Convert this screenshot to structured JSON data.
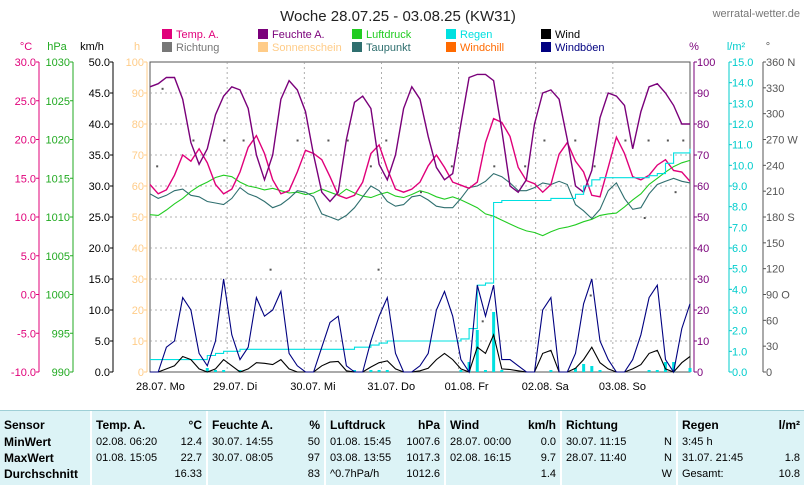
{
  "title": "Woche 28.07.25 - 03.08.25 (KW31)",
  "site": "werratal-wetter.de",
  "legend": [
    {
      "label": "Temp. A.",
      "color": "#e0007a"
    },
    {
      "label": "Feuchte A.",
      "color": "#7a007a"
    },
    {
      "label": "Luftdruck",
      "color": "#22cc22"
    },
    {
      "label": "Regen",
      "color": "#00e0e0"
    },
    {
      "label": "Wind",
      "color": "#000000"
    },
    {
      "label": "Richtung",
      "color": "#777777"
    },
    {
      "label": "Sonnenschein",
      "color": "#ffcc88"
    },
    {
      "label": "Taupunkt",
      "color": "#2f6f6f"
    },
    {
      "label": "Windchill",
      "color": "#ff6a00"
    },
    {
      "label": "Windböen",
      "color": "#000080"
    }
  ],
  "axes_units": {
    "temp": "°C",
    "pressure": "hPa",
    "wind": "km/h",
    "sun": "h",
    "humidity": "%",
    "rain": "l/m²",
    "direction": "°"
  },
  "chart_data": {
    "type": "line",
    "xlabels": [
      "28.07. Mo",
      "29.07. Di",
      "30.07. Mi",
      "31.07. Do",
      "01.08. Fr",
      "02.08. Sa",
      "03.08. So"
    ],
    "axes": {
      "temp": {
        "color": "#e0007a",
        "ticks": [
          "30.0",
          "25.0",
          "20.0",
          "15.0",
          "10.0",
          "5.0",
          "0.0",
          "-5.0",
          "-10.0"
        ]
      },
      "pressure": {
        "color": "#22aa22",
        "ticks": [
          "1030",
          "1025",
          "1020",
          "1015",
          "1010",
          "1005",
          "1000",
          "995",
          "990"
        ]
      },
      "wind": {
        "color": "#000000",
        "ticks": [
          "50.0",
          "45.0",
          "40.0",
          "35.0",
          "30.0",
          "25.0",
          "20.0",
          "15.0",
          "10.0",
          "5.0",
          "0.0"
        ]
      },
      "sun": {
        "color": "#ffcc88",
        "ticks": [
          "100",
          "90",
          "80",
          "70",
          "60",
          "50",
          "40",
          "30",
          "20",
          "10",
          "0"
        ]
      },
      "humidity": {
        "color": "#7a007a",
        "ticks": [
          "100",
          "90",
          "80",
          "70",
          "60",
          "50",
          "40",
          "30",
          "20",
          "10",
          "0"
        ]
      },
      "rain": {
        "color": "#00cccc",
        "ticks": [
          "15.0",
          "14.0",
          "13.0",
          "12.0",
          "11.0",
          "10.0",
          "9.0",
          "8.0",
          "7.0",
          "6.0",
          "5.0",
          "4.0",
          "3.0",
          "2.0",
          "1.0",
          "0.0"
        ]
      },
      "direction": {
        "color": "#555555",
        "ticks": [
          "360 N",
          "330",
          "300",
          "270 W",
          "240",
          "210",
          "180 S",
          "150",
          "120",
          "90 O",
          "60",
          "30",
          "0"
        ]
      }
    },
    "series": [
      {
        "name": "Temp. A.",
        "axis": "temp",
        "color": "#e0007a",
        "values": [
          14.2,
          13.0,
          13.5,
          15.4,
          18.0,
          17.2,
          18.8,
          17.0,
          14.2,
          13.0,
          13.6,
          15.8,
          19.0,
          20.5,
          18.2,
          14.8,
          13.0,
          13.4,
          15.8,
          18.6,
          18.2,
          17.4,
          15.2,
          12.8,
          12.4,
          12.8,
          14.5,
          18.2,
          19.3,
          16.2,
          13.6,
          13.2,
          13.6,
          14.5,
          16.6,
          18.0,
          16.4,
          14.5,
          14.1,
          13.7,
          14.5,
          19.6,
          22.7,
          22.2,
          20.4,
          16.4,
          14.7,
          14.3,
          13.2,
          14.2,
          18.1,
          19.6,
          17.2,
          15.8,
          12.8,
          12.6,
          16.4,
          20.3,
          18.2,
          15.2,
          14.8,
          15.4,
          16.7,
          17.4,
          16.0,
          15.8,
          14.6
        ]
      },
      {
        "name": "Feuchte A.",
        "axis": "humidity",
        "color": "#7a007a",
        "values": [
          92,
          93,
          95,
          95,
          88,
          74,
          67,
          72,
          83,
          89,
          92,
          91,
          85,
          70,
          62,
          70,
          88,
          94,
          91,
          84,
          70,
          58,
          55,
          58,
          75,
          87,
          89,
          85,
          67,
          62,
          70,
          85,
          92,
          88,
          76,
          66,
          62,
          64,
          80,
          95,
          96,
          96,
          94,
          78,
          60,
          58,
          62,
          80,
          90,
          91,
          88,
          75,
          60,
          58,
          65,
          82,
          90,
          89,
          86,
          72,
          84,
          92,
          93,
          90,
          86,
          80,
          80
        ]
      },
      {
        "name": "Luftdruck",
        "axis": "pressure",
        "color": "#22cc22",
        "values": [
          1010.3,
          1010.2,
          1010.9,
          1011.7,
          1012.4,
          1013.3,
          1014.0,
          1014.5,
          1015.1,
          1015.4,
          1015.2,
          1014.5,
          1014.0,
          1013.8,
          1013.5,
          1013.7,
          1013.4,
          1013.1,
          1013.2,
          1012.9,
          1013.1,
          1013.6,
          1013.2,
          1012.8,
          1013.6,
          1013.1,
          1012.7,
          1012.5,
          1012.9,
          1013.2,
          1012.7,
          1012.5,
          1012.9,
          1013.4,
          1013.1,
          1012.6,
          1012.3,
          1012.6,
          1012.2,
          1011.7,
          1011.2,
          1010.4,
          1010.1,
          1009.6,
          1009.1,
          1008.6,
          1008.2,
          1008.0,
          1007.6,
          1008.1,
          1008.5,
          1008.7,
          1009.0,
          1009.4,
          1009.7,
          1010.2,
          1010.4,
          1010.5,
          1011.3,
          1012.2,
          1013.0,
          1014.2,
          1015.0,
          1015.8,
          1016.5,
          1017.0,
          1017.3
        ]
      },
      {
        "name": "Taupunkt",
        "axis": "temp",
        "color": "#2f6f6f",
        "values": [
          13.0,
          12.4,
          12.8,
          13.4,
          13.6,
          12.8,
          12.6,
          12.0,
          11.8,
          11.6,
          12.4,
          13.8,
          13.0,
          12.6,
          12.0,
          11.2,
          11.6,
          12.4,
          13.4,
          13.2,
          12.6,
          10.4,
          10.0,
          9.6,
          10.2,
          11.2,
          12.6,
          14.0,
          13.4,
          12.0,
          11.4,
          11.6,
          12.6,
          12.8,
          12.2,
          11.4,
          11.2,
          11.2,
          12.4,
          13.8,
          14.0,
          14.6,
          15.6,
          15.2,
          14.4,
          13.4,
          13.4,
          13.8,
          14.4,
          14.2,
          14.6,
          14.2,
          11.6,
          10.8,
          9.8,
          11.0,
          13.4,
          14.4,
          12.4,
          11.0,
          11.2,
          13.0,
          14.2,
          14.6,
          15.0,
          14.6,
          14.4
        ]
      },
      {
        "name": "Windböen",
        "axis": "wind",
        "color": "#000080",
        "values": [
          0,
          0,
          4,
          5,
          12,
          10,
          3,
          1,
          5,
          15,
          6,
          2,
          4,
          12,
          9,
          10,
          13,
          3,
          1,
          0,
          0,
          4,
          8,
          9,
          1,
          0,
          0,
          5,
          9,
          12,
          3,
          0,
          0,
          1,
          3,
          10,
          13,
          9,
          2,
          0,
          14,
          9,
          14,
          2,
          2,
          1,
          0,
          0,
          10,
          12,
          0,
          0,
          3,
          11,
          15,
          5,
          2,
          0,
          0,
          2,
          6,
          12,
          14,
          2,
          0,
          7,
          11
        ]
      },
      {
        "name": "Wind",
        "axis": "wind",
        "color": "#000000",
        "values": [
          0,
          0,
          0.5,
          1.0,
          2.5,
          2.0,
          0.5,
          0,
          0.5,
          2.0,
          1.0,
          0,
          0.5,
          1.5,
          1.4,
          1.2,
          2.0,
          0.5,
          0,
          0,
          0,
          1.0,
          1.6,
          1.7,
          0.2,
          0,
          0,
          0.8,
          1.5,
          1.8,
          0.5,
          0,
          0,
          0.2,
          0.6,
          2.0,
          3.0,
          2.0,
          0.5,
          0,
          4.0,
          3.0,
          6.0,
          0.5,
          0.4,
          0.2,
          0,
          0,
          3.0,
          3.5,
          0,
          0,
          0.6,
          2.0,
          4.0,
          1.5,
          0.5,
          0,
          0,
          0.5,
          1.2,
          3.0,
          3.5,
          0.5,
          0,
          1.5,
          2.5
        ]
      },
      {
        "name": "Regen",
        "axis": "rain",
        "color": "#00e0e0",
        "values": [
          0.6,
          0.6,
          0.6,
          0.6,
          0.6,
          0.6,
          0.6,
          0.8,
          0.9,
          1.0,
          1.0,
          1.1,
          1.1,
          1.1,
          1.1,
          1.1,
          1.1,
          1.1,
          1.1,
          1.1,
          1.1,
          1.1,
          1.1,
          1.1,
          1.1,
          1.2,
          1.2,
          1.3,
          1.4,
          1.5,
          1.5,
          1.5,
          1.5,
          1.5,
          1.5,
          1.5,
          1.5,
          1.5,
          1.6,
          2.1,
          4.2,
          4.3,
          8.2,
          8.3,
          8.3,
          8.3,
          8.3,
          8.3,
          8.3,
          8.4,
          8.4,
          8.4,
          8.6,
          9.0,
          9.3,
          9.4,
          9.4,
          9.4,
          9.4,
          9.4,
          9.4,
          9.5,
          9.6,
          10.1,
          10.6,
          10.6,
          10.8
        ]
      }
    ],
    "direction_points": [
      {
        "day": 0.08,
        "deg": 240
      },
      {
        "day": 0.55,
        "deg": 270
      },
      {
        "day": 0.95,
        "deg": 270
      },
      {
        "day": 1.2,
        "deg": 270
      },
      {
        "day": 1.9,
        "deg": 270
      },
      {
        "day": 2.3,
        "deg": 270
      },
      {
        "day": 2.55,
        "deg": 270
      },
      {
        "day": 2.85,
        "deg": 240
      },
      {
        "day": 3.05,
        "deg": 270
      },
      {
        "day": 3.5,
        "deg": 210
      },
      {
        "day": 3.9,
        "deg": 240
      },
      {
        "day": 4.45,
        "deg": 240
      },
      {
        "day": 4.85,
        "deg": 240
      },
      {
        "day": 5.1,
        "deg": 270
      },
      {
        "day": 5.5,
        "deg": 270
      },
      {
        "day": 5.75,
        "deg": 240
      },
      {
        "day": 6.15,
        "deg": 270
      },
      {
        "day": 6.45,
        "deg": 270
      },
      {
        "day": 6.7,
        "deg": 270
      },
      {
        "day": 6.9,
        "deg": 270
      },
      {
        "day": 0.15,
        "deg": 330
      },
      {
        "day": 1.55,
        "deg": 120
      },
      {
        "day": 2.95,
        "deg": 120
      },
      {
        "day": 4.3,
        "deg": 60
      },
      {
        "day": 5.7,
        "deg": 90
      },
      {
        "day": 6.4,
        "deg": 180
      },
      {
        "day": 6.8,
        "deg": 210
      }
    ]
  },
  "stats": {
    "rows": [
      "Sensor",
      "MinWert",
      "MaxWert",
      "Durchschnitt"
    ],
    "columns": [
      {
        "title": "Temp. A.",
        "unit": "°C",
        "min": [
          "02.08.  06:20",
          "12.4"
        ],
        "max": [
          "01.08.  15:05",
          "22.7"
        ],
        "avg": [
          "",
          "16.33"
        ]
      },
      {
        "title": "Feuchte A.",
        "unit": "%",
        "min": [
          "30.07.  14:55",
          "50"
        ],
        "max": [
          "30.07.  08:05",
          "97"
        ],
        "avg": [
          "",
          "83"
        ]
      },
      {
        "title": "Luftdruck",
        "unit": "hPa",
        "min": [
          "01.08.  15:45",
          "1007.6"
        ],
        "max": [
          "03.08.  13:55",
          "1017.3"
        ],
        "avg": [
          "^0.7hPa/h",
          "1012.6"
        ]
      },
      {
        "title": "Wind",
        "unit": "km/h",
        "min": [
          "28.07.  00:00",
          "0.0"
        ],
        "max": [
          "02.08.  16:15",
          "9.7"
        ],
        "avg": [
          "",
          "1.4"
        ]
      },
      {
        "title": "Richtung",
        "unit": "",
        "min": [
          "30.07.  11:15",
          "N"
        ],
        "max": [
          "28.07.  11:40",
          "N"
        ],
        "avg": [
          "",
          "W"
        ]
      },
      {
        "title": "Regen",
        "unit": "l/m²",
        "min": [
          "3:45 h",
          ""
        ],
        "max": [
          "31.07.  21:45",
          "1.8"
        ],
        "avg": [
          "Gesamt:",
          "10.8"
        ]
      }
    ]
  }
}
